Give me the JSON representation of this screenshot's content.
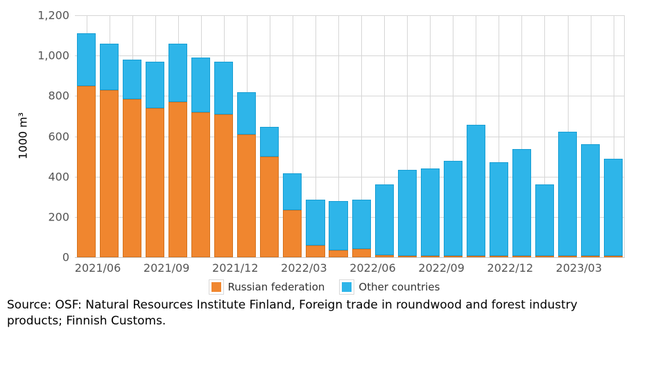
{
  "chart_data": {
    "type": "bar",
    "stacked": true,
    "title": "",
    "xlabel": "",
    "ylabel": "1000 m³",
    "ylim": [
      0,
      1200
    ],
    "grid": true,
    "legend_position": "bottom",
    "y_ticks": {
      "values": [
        1200,
        1000,
        800,
        600,
        400,
        200,
        0
      ],
      "labels": [
        "1,200",
        "1,000",
        "800",
        "600",
        "400",
        "200",
        "0"
      ]
    },
    "categories": [
      "2021/05",
      "2021/06",
      "2021/07",
      "2021/08",
      "2021/09",
      "2021/10",
      "2021/11",
      "2021/12",
      "2022/01",
      "2022/02",
      "2022/03",
      "2022/04",
      "2022/05",
      "2022/06",
      "2022/07",
      "2022/08",
      "2022/09",
      "2022/10",
      "2022/11",
      "2022/12",
      "2023/01",
      "2023/02",
      "2023/03",
      "2023/04"
    ],
    "x_ticks": {
      "labels": [
        "2021/06",
        "2021/09",
        "2021/12",
        "2022/03",
        "2022/06",
        "2022/09",
        "2022/12",
        "2023/03"
      ],
      "category_indices": [
        1,
        4,
        7,
        10,
        13,
        16,
        19,
        22
      ]
    },
    "series": [
      {
        "name": "Russian federation",
        "color": "#f0862f",
        "border_color": "#d4731f",
        "values": [
          850,
          830,
          785,
          740,
          770,
          720,
          710,
          610,
          500,
          235,
          60,
          35,
          40,
          10,
          5,
          5,
          5,
          5,
          5,
          5,
          5,
          5,
          5,
          5
        ]
      },
      {
        "name": "Other countries",
        "color": "#2eb5e9",
        "border_color": "#189ed3",
        "values": [
          260,
          230,
          195,
          230,
          290,
          270,
          260,
          210,
          145,
          180,
          225,
          245,
          245,
          350,
          425,
          435,
          470,
          650,
          465,
          530,
          355,
          615,
          555,
          480
        ]
      }
    ],
    "colors": {
      "grid": "#d6d6d6",
      "axis_line": "#c9c9c9",
      "tick_label": "#545454",
      "legend_label": "#333333"
    }
  },
  "source": {
    "text": "Source: OSF: Natural Resources Institute Finland, Foreign trade in roundwood and forest industry products; Finnish Customs."
  }
}
